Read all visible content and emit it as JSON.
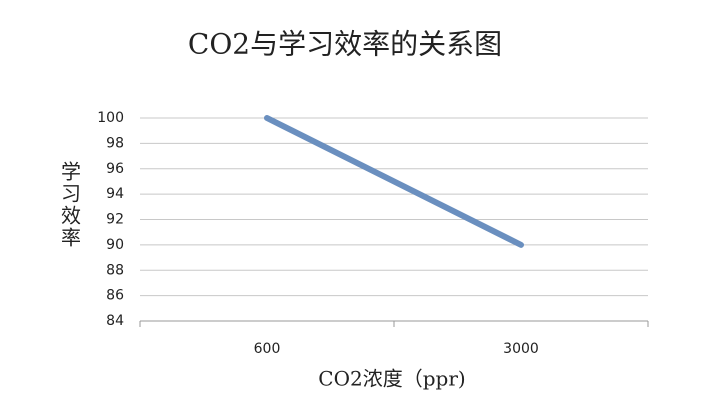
{
  "chart_data": {
    "type": "line",
    "title": "CO2与学习效率的关系图",
    "x_label": "CO2浓度（ppr)",
    "y_label": "学习效率",
    "categories": [
      "600",
      "3000"
    ],
    "values": [
      100,
      90
    ],
    "color": "#6a8fbf",
    "ylim": [
      84,
      100
    ],
    "yticks": [
      84,
      86,
      88,
      90,
      92,
      94,
      96,
      98,
      100
    ],
    "grid": true
  }
}
